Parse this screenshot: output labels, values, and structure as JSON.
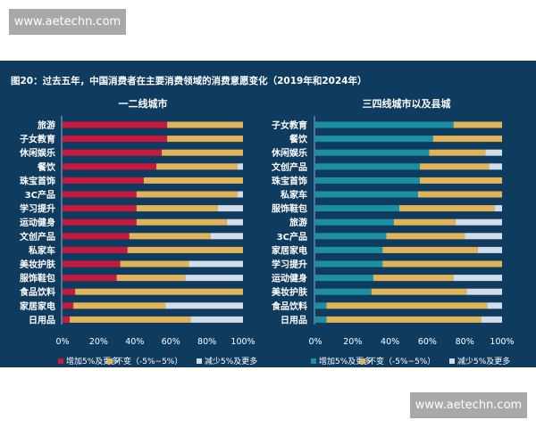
{
  "watermarks": [
    "www.aetechn.com",
    "www.aetechn.com"
  ],
  "chart_data": [
    {
      "type": "bar",
      "stacked": true,
      "orientation": "horizontal",
      "title": "图20：过去五年，中国消费者在主要消费领域的消费意愿变化（2019年和2024年）",
      "subtitle": "一二线城市",
      "categories": [
        "旅游",
        "子女教育",
        "休闲娱乐",
        "餐饮",
        "珠宝首饰",
        "3C产品",
        "学习提升",
        "运动健身",
        "文创产品",
        "私家车",
        "美妆护肤",
        "服饰鞋包",
        "食品饮料",
        "家居家电",
        "日用品"
      ],
      "series": [
        {
          "name": "增加5%及更多",
          "color": "#c8193c",
          "values": [
            58,
            58,
            55,
            52,
            45,
            41,
            41,
            41,
            37,
            36,
            32,
            30,
            7,
            6,
            4
          ]
        },
        {
          "name": "不变（-5%~5%）",
          "color": "#e2b45a",
          "values": [
            42,
            42,
            45,
            45,
            55,
            56,
            45,
            50,
            45,
            64,
            38,
            38,
            93,
            51,
            67
          ]
        },
        {
          "name": "减少5%及更多",
          "color": "#d3dde6",
          "values": [
            0,
            0,
            0,
            3,
            0,
            3,
            14,
            9,
            18,
            0,
            30,
            32,
            0,
            43,
            29
          ]
        }
      ],
      "xticks": [
        "0%",
        "20%",
        "40%",
        "60%",
        "80%",
        "100%"
      ],
      "xlim": [
        0,
        100
      ],
      "legend": "bottom"
    },
    {
      "type": "bar",
      "stacked": true,
      "orientation": "horizontal",
      "subtitle": "三四线城市以及县城",
      "categories": [
        "子女教育",
        "餐饮",
        "休闲娱乐",
        "文创产品",
        "珠宝首饰",
        "私家车",
        "服饰鞋包",
        "旅游",
        "3C产品",
        "家居家电",
        "学习提升",
        "运动健身",
        "美妆护肤",
        "食品饮料",
        "日用品"
      ],
      "series": [
        {
          "name": "增加5%及更多",
          "color": "#1c8fa3",
          "values": [
            74,
            63,
            61,
            56,
            56,
            55,
            45,
            42,
            38,
            36,
            36,
            31,
            30,
            6,
            6
          ]
        },
        {
          "name": "不变（-5%~5%）",
          "color": "#e2b45a",
          "values": [
            26,
            37,
            30,
            37,
            44,
            45,
            51,
            33,
            42,
            51,
            64,
            43,
            51,
            86,
            83
          ]
        },
        {
          "name": "减少5%及更多",
          "color": "#d3dde6",
          "values": [
            0,
            0,
            9,
            7,
            0,
            0,
            4,
            25,
            20,
            13,
            0,
            26,
            19,
            8,
            11
          ]
        }
      ],
      "xticks": [
        "0%",
        "20%",
        "40%",
        "60%",
        "80%",
        "100%"
      ],
      "xlim": [
        0,
        100
      ],
      "legend": "bottom"
    }
  ]
}
